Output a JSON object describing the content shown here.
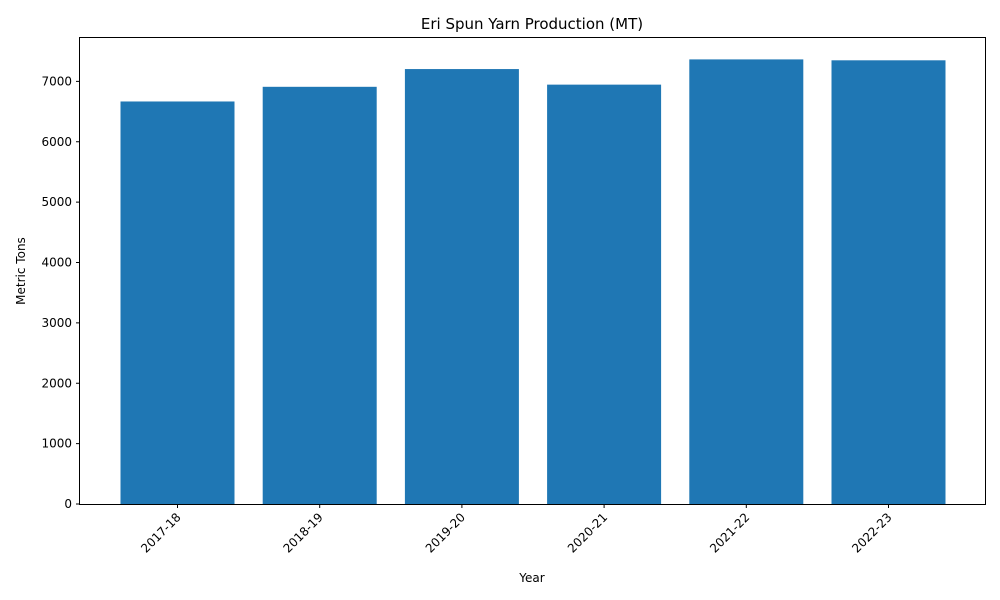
{
  "chart_data": {
    "type": "bar",
    "title": "Eri Spun Yarn Production (MT)",
    "xlabel": "Year",
    "ylabel": "Metric Tons",
    "categories": [
      "2017-18",
      "2018-19",
      "2019-20",
      "2020-21",
      "2021-22",
      "2022-23"
    ],
    "values": [
      6667,
      6910,
      7204,
      6946,
      7364,
      7349
    ],
    "ylim": [
      0,
      7735
    ],
    "yticks": [
      0,
      1000,
      2000,
      3000,
      4000,
      5000,
      6000,
      7000
    ],
    "bar_color": "#1f77b4",
    "grid": false,
    "legend": "none"
  }
}
